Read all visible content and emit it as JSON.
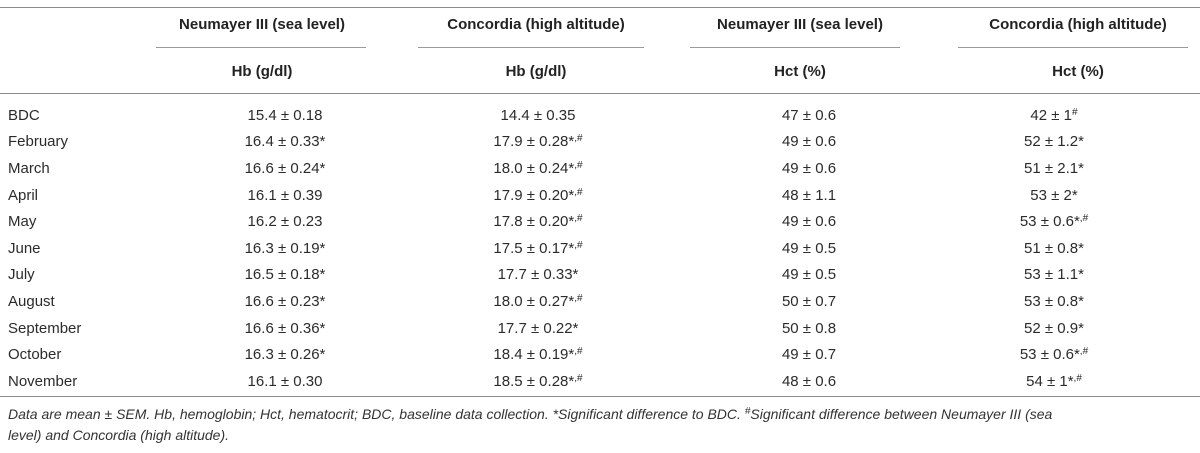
{
  "headers": {
    "group": [
      "Neumayer III (sea level)",
      "Concordia (high altitude)",
      "Neumayer III (sea level)",
      "Concordia (high altitude)"
    ],
    "measure": [
      "Hb (g/dl)",
      "Hb (g/dl)",
      "Hct (%)",
      "Hct (%)"
    ]
  },
  "rows": [
    {
      "label": "BDC",
      "cells": [
        {
          "v": "15.4 ± 0.18",
          "s": ""
        },
        {
          "v": "14.4 ± 0.35",
          "s": ""
        },
        {
          "v": "47 ± 0.6",
          "s": ""
        },
        {
          "v": "42 ± 1",
          "s": "#"
        }
      ]
    },
    {
      "label": "February",
      "cells": [
        {
          "v": "16.4 ± 0.33*",
          "s": ""
        },
        {
          "v": "17.9 ± 0.28*",
          "s": ",#"
        },
        {
          "v": "49 ± 0.6",
          "s": ""
        },
        {
          "v": "52 ± 1.2*",
          "s": ""
        }
      ]
    },
    {
      "label": "March",
      "cells": [
        {
          "v": "16.6 ± 0.24*",
          "s": ""
        },
        {
          "v": "18.0 ± 0.24*",
          "s": ",#"
        },
        {
          "v": "49 ± 0.6",
          "s": ""
        },
        {
          "v": "51 ± 2.1*",
          "s": ""
        }
      ]
    },
    {
      "label": "April",
      "cells": [
        {
          "v": "16.1 ± 0.39",
          "s": ""
        },
        {
          "v": "17.9 ± 0.20*",
          "s": ",#"
        },
        {
          "v": "48 ± 1.1",
          "s": ""
        },
        {
          "v": "53 ± 2*",
          "s": ""
        }
      ]
    },
    {
      "label": "May",
      "cells": [
        {
          "v": "16.2 ± 0.23",
          "s": ""
        },
        {
          "v": "17.8 ± 0.20*",
          "s": ",#"
        },
        {
          "v": "49 ± 0.6",
          "s": ""
        },
        {
          "v": "53 ± 0.6*",
          "s": ",#"
        }
      ]
    },
    {
      "label": "June",
      "cells": [
        {
          "v": "16.3 ± 0.19*",
          "s": ""
        },
        {
          "v": "17.5 ± 0.17*",
          "s": ",#"
        },
        {
          "v": "49 ± 0.5",
          "s": ""
        },
        {
          "v": "51 ± 0.8*",
          "s": ""
        }
      ]
    },
    {
      "label": "July",
      "cells": [
        {
          "v": "16.5 ± 0.18*",
          "s": ""
        },
        {
          "v": "17.7 ± 0.33*",
          "s": ""
        },
        {
          "v": "49 ± 0.5",
          "s": ""
        },
        {
          "v": "53 ± 1.1*",
          "s": ""
        }
      ]
    },
    {
      "label": "August",
      "cells": [
        {
          "v": "16.6 ± 0.23*",
          "s": ""
        },
        {
          "v": "18.0 ± 0.27*",
          "s": ",#"
        },
        {
          "v": "50 ± 0.7",
          "s": ""
        },
        {
          "v": "53 ± 0.8*",
          "s": ""
        }
      ]
    },
    {
      "label": "September",
      "cells": [
        {
          "v": "16.6 ± 0.36*",
          "s": ""
        },
        {
          "v": "17.7 ± 0.22*",
          "s": ""
        },
        {
          "v": "50 ± 0.8",
          "s": ""
        },
        {
          "v": "52 ± 0.9*",
          "s": ""
        }
      ]
    },
    {
      "label": "October",
      "cells": [
        {
          "v": "16.3 ± 0.26*",
          "s": ""
        },
        {
          "v": "18.4 ± 0.19*",
          "s": ",#"
        },
        {
          "v": "49 ± 0.7",
          "s": ""
        },
        {
          "v": "53 ± 0.6*",
          "s": ",#"
        }
      ]
    },
    {
      "label": "November",
      "cells": [
        {
          "v": "16.1 ± 0.30",
          "s": ""
        },
        {
          "v": "18.5 ± 0.28*",
          "s": ",#"
        },
        {
          "v": "48 ± 0.6",
          "s": ""
        },
        {
          "v": "54 ± 1*",
          "s": ",#"
        }
      ]
    }
  ],
  "footnote": {
    "line1_a": "Data are mean ± SEM. Hb, hemoglobin; Hct, hematocrit; BDC, baseline data collection. *Significant difference to BDC. ",
    "line1_mark": "#",
    "line1_b": "Significant difference between Neumayer III (sea",
    "line2": "level) and Concordia (high altitude)."
  }
}
